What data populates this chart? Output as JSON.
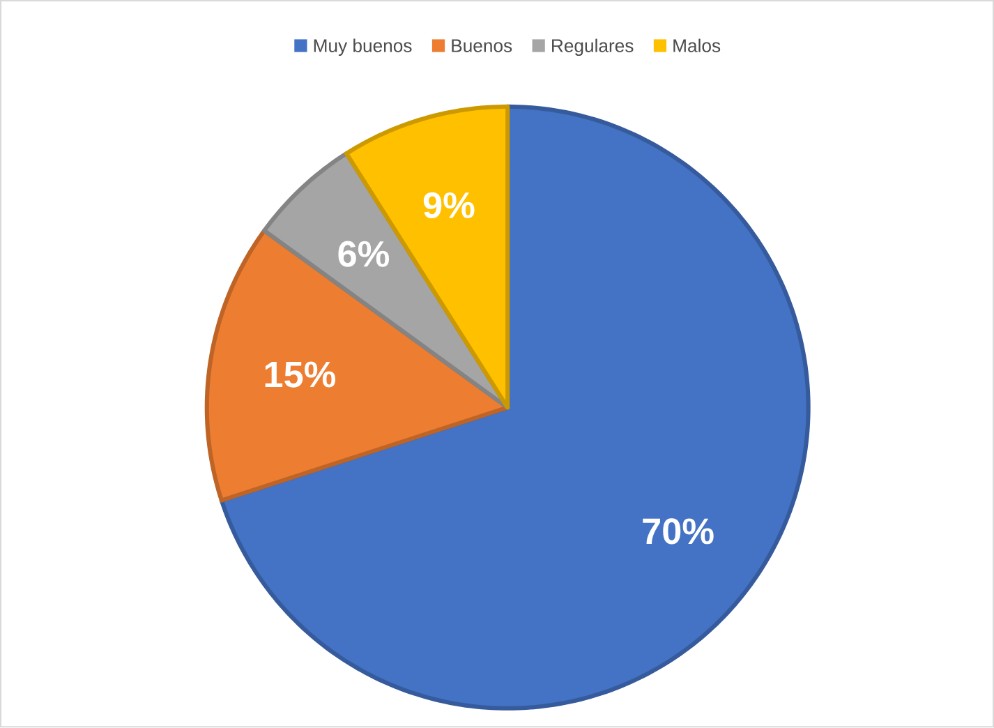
{
  "chart_data": {
    "type": "pie",
    "categories": [
      "Muy buenos",
      "Buenos",
      "Regulares",
      "Malos"
    ],
    "values": [
      70,
      15,
      6,
      9
    ],
    "colors": [
      "#4472c4",
      "#ed7d31",
      "#a5a5a5",
      "#ffc000"
    ],
    "value_labels": [
      "70%",
      "15%",
      "6%",
      "9%"
    ],
    "legend": "top"
  }
}
